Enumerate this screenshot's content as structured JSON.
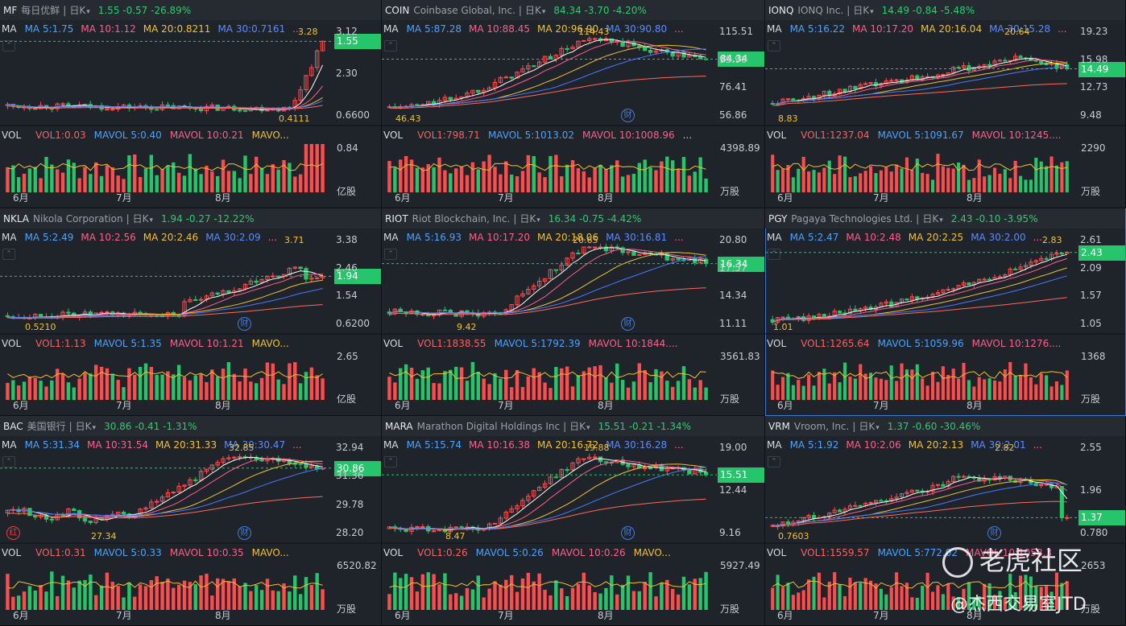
{
  "panels": [
    {
      "symbol": "MF",
      "name": "每日优鲜",
      "period": "日K",
      "quote": "1.55 -0.57 -26.89%",
      "ma": {
        "label": "MA",
        "ma5": "MA 5:1.75",
        "ma10": "MA 10:1.12",
        "ma20": "MA 20:0.8211",
        "ma30": "MA 30:0.7161",
        "more": "..."
      },
      "price_ticks": [
        "3.12",
        "2.30",
        "0.6600"
      ],
      "last_price": "1.55",
      "high_annot": "3.28",
      "low_annot": "0.4111",
      "vol": {
        "label": "VOL",
        "vol1": "VOL1:0.03",
        "mavol5": "MAVOL 5:0.40",
        "mavol10": "MAVOL 10:0.21",
        "more": "MAVO..."
      },
      "vol_tick": "0.84",
      "vol_unit": "亿股",
      "months": [
        "6月",
        "7月",
        "8月"
      ],
      "fin_badge": "",
      "red_badge": ""
    },
    {
      "symbol": "COIN",
      "name": "Coinbase Global, Inc.",
      "period": "日K",
      "quote": "84.34 -3.70 -4.20%",
      "ma": {
        "label": "MA",
        "ma5": "MA 5:87.28",
        "ma10": "MA 10:88.45",
        "ma20": "MA 20:96.90",
        "ma30": "MA 30:90.80",
        "more": "..."
      },
      "price_ticks": [
        "115.51",
        "95.96",
        "76.41",
        "56.86"
      ],
      "last_price": "84.34",
      "high_annot": "114.43",
      "low_annot": "46.43",
      "vol": {
        "label": "VOL",
        "vol1": "VOL1:798.71",
        "mavol5": "MAVOL 5:1013.02",
        "mavol10": "MAVOL 10:1008.96",
        "more": "..."
      },
      "vol_tick": "4398.89",
      "vol_unit": "万股",
      "months": [
        "6月",
        "7月",
        "8月"
      ],
      "fin_badge": "财",
      "red_badge": ""
    },
    {
      "symbol": "IONQ",
      "name": "IONQ Inc.",
      "period": "日K",
      "quote": "14.49 -0.84 -5.48%",
      "ma": {
        "label": "MA",
        "ma5": "MA 5:16.22",
        "ma10": "MA 10:17.20",
        "ma20": "MA 20:16.04",
        "ma30": "MA 30:15.28",
        "more": "..."
      },
      "price_ticks": [
        "19.23",
        "15.98",
        "12.73",
        "9.48"
      ],
      "last_price": "14.49",
      "high_annot": "20.64",
      "low_annot": "8.83",
      "vol": {
        "label": "VOL",
        "vol1": "VOL1:1237.04",
        "mavol5": "MAVOL 5:1091.67",
        "mavol10": "MAVOL 10:1245....",
        "more": ""
      },
      "vol_tick": "2290",
      "vol_unit": "万股",
      "months": [
        "6月",
        "7月",
        "8月"
      ],
      "fin_badge": "",
      "red_badge": ""
    },
    {
      "symbol": "NKLA",
      "name": "Nikola Corporation",
      "period": "日K",
      "quote": "1.94 -0.27 -12.22%",
      "ma": {
        "label": "MA",
        "ma5": "MA 5:2.49",
        "ma10": "MA 10:2.56",
        "ma20": "MA 20:2.46",
        "ma30": "MA 30:2.09",
        "more": "..."
      },
      "price_ticks": [
        "3.38",
        "2.46",
        "1.54",
        "0.6200"
      ],
      "last_price": "1.94",
      "high_annot": "3.71",
      "low_annot": "0.5210",
      "vol": {
        "label": "VOL",
        "vol1": "VOL1:1.13",
        "mavol5": "MAVOL 5:1.35",
        "mavol10": "MAVOL 10:1.21",
        "more": "MAVO..."
      },
      "vol_tick": "2.65",
      "vol_unit": "亿股",
      "months": [
        "6月",
        "7月",
        "8月"
      ],
      "fin_badge": "财",
      "red_badge": ""
    },
    {
      "symbol": "RIOT",
      "name": "Riot Blockchain, Inc.",
      "period": "日K",
      "quote": "16.34 -0.75 -4.42%",
      "ma": {
        "label": "MA",
        "ma5": "MA 5:16.93",
        "ma10": "MA 10:17.20",
        "ma20": "MA 20:18.06",
        "ma30": "MA 30:16.81",
        "more": "..."
      },
      "price_ticks": [
        "20.80",
        "17.57",
        "14.34",
        "11.11"
      ],
      "last_price": "16.34",
      "high_annot": "20.65",
      "low_annot": "9.42",
      "vol": {
        "label": "VOL",
        "vol1": "VOL1:1838.55",
        "mavol5": "MAVOL 5:1792.39",
        "mavol10": "MAVOL 10:1844....",
        "more": ""
      },
      "vol_tick": "3561.83",
      "vol_unit": "万股",
      "months": [
        "6月",
        "7月",
        "8月"
      ],
      "fin_badge": "财",
      "red_badge": ""
    },
    {
      "symbol": "PGY",
      "name": "Pagaya Technologies Ltd.",
      "period": "日K",
      "quote": "2.43 -0.10 -3.95%",
      "ma": {
        "label": "MA",
        "ma5": "MA 5:2.47",
        "ma10": "MA 10:2.48",
        "ma20": "MA 20:2.25",
        "ma30": "MA 30:2.00",
        "more": "..."
      },
      "price_ticks": [
        "2.61",
        "2.09",
        "1.57",
        "1.05"
      ],
      "last_price": "2.43",
      "high_annot": "2.83",
      "low_annot": "1.01",
      "vol": {
        "label": "VOL",
        "vol1": "VOL1:1265.64",
        "mavol5": "MAVOL 5:1059.96",
        "mavol10": "MAVOL 10:1276....",
        "more": ""
      },
      "vol_tick": "1368",
      "vol_unit": "万股",
      "months": [
        "6月",
        "7月",
        "8月"
      ],
      "fin_badge": "",
      "red_badge": ""
    },
    {
      "symbol": "BAC",
      "name": "美国银行",
      "period": "日K",
      "quote": "30.86 -0.41 -1.31%",
      "ma": {
        "label": "MA",
        "ma5": "MA 5:31.34",
        "ma10": "MA 10:31.54",
        "ma20": "MA 20:31.33",
        "ma30": "MA 30:30.47",
        "more": "..."
      },
      "price_ticks": [
        "32.94",
        "31.36",
        "29.78",
        "28.20"
      ],
      "last_price": "30.86",
      "high_annot": "32.85",
      "low_annot": "27.34",
      "vol": {
        "label": "VOL",
        "vol1": "VOL1:0.31",
        "mavol5": "MAVOL 5:0.33",
        "mavol10": "MAVOL 10:0.35",
        "more": "MAVO..."
      },
      "vol_tick": "6520.82",
      "vol_unit": "万股",
      "months": [
        "6月",
        "7月",
        "8月"
      ],
      "fin_badge": "财",
      "red_badge": "红"
    },
    {
      "symbol": "MARA",
      "name": "Marathon Digital Holdings Inc",
      "period": "日K",
      "quote": "15.51 -0.21 -1.34%",
      "ma": {
        "label": "MA",
        "ma5": "MA 5:15.74",
        "ma10": "MA 10:16.38",
        "ma20": "MA 20:16.72",
        "ma30": "MA 30:16.28",
        "more": "..."
      },
      "price_ticks": [
        "19.00",
        "12.44",
        "9.16"
      ],
      "last_price": "15.51",
      "high_annot": "19.88",
      "low_annot": "8.47",
      "vol": {
        "label": "VOL",
        "vol1": "VOL1:0.26",
        "mavol5": "MAVOL 5:0.26",
        "mavol10": "MAVOL 10:0.26",
        "more": "MAVO..."
      },
      "vol_tick": "5927.49",
      "vol_unit": "万股",
      "months": [
        "6月",
        "7月",
        "8月"
      ],
      "fin_badge": "财",
      "red_badge": ""
    },
    {
      "symbol": "VRM",
      "name": "Vroom, Inc.",
      "period": "日K",
      "quote": "1.37 -0.60 -30.46%",
      "ma": {
        "label": "MA",
        "ma5": "MA 5:1.92",
        "ma10": "MA 10:2.06",
        "ma20": "MA 20:2.13",
        "ma30": "MA 30:2.01",
        "more": "..."
      },
      "price_ticks": [
        "2.55",
        "1.96",
        "0.780"
      ],
      "last_price": "1.37",
      "high_annot": "2.82",
      "low_annot": "0.7603",
      "vol": {
        "label": "VOL",
        "vol1": "VOL1:1559.57",
        "mavol5": "MAVOL 5:772.02",
        "mavol10": "MAVOL 10:1058.3",
        "more": ""
      },
      "vol_tick": "2653",
      "vol_unit": "万股",
      "months": [
        "6月",
        "7月",
        "8月"
      ],
      "fin_badge": "财",
      "red_badge": ""
    }
  ],
  "watermark": {
    "brand": "老虎社区",
    "author": "@杰西交易室JTD"
  },
  "colors": {
    "up": "#ff4d4f",
    "down": "#27c56b",
    "ma5": "#ffffff",
    "ma10": "#ff5f8a",
    "ma20": "#f2c230",
    "ma30": "#4a78ff",
    "ma60": "#ff6a5a"
  }
}
